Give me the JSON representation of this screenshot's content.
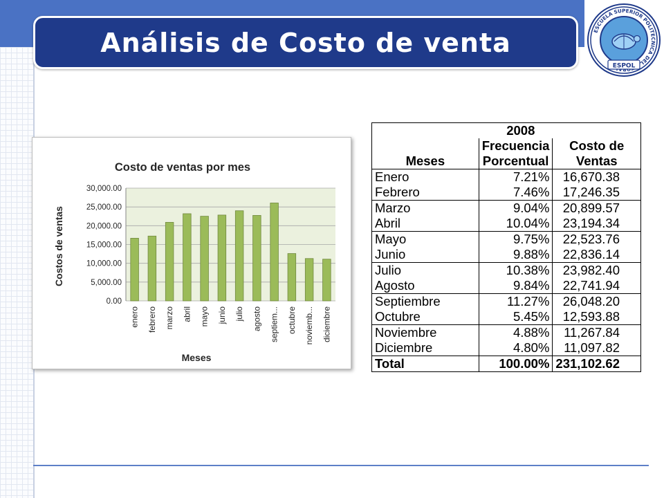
{
  "slide": {
    "title": "Análisis de Costo de venta"
  },
  "logo": {
    "ring_text": "ESCUELA SUPERIOR POLITECNICA DEL LITORAL",
    "banner_text": "ESPOL"
  },
  "chart_data": {
    "type": "bar",
    "title": "Costo de ventas por mes",
    "xlabel": "Meses",
    "ylabel": "Costos de ventas",
    "categories": [
      "enero",
      "febrero",
      "marzo",
      "abril",
      "mayo",
      "junio",
      "julio",
      "agosto",
      "septiem...",
      "octubre",
      "noviemb...",
      "diciembre"
    ],
    "values": [
      16670.38,
      17246.35,
      20899.57,
      23194.34,
      22523.76,
      22836.14,
      23982.4,
      22741.94,
      26048.2,
      12593.88,
      11267.84,
      11097.82
    ],
    "ylim": [
      0,
      30000
    ],
    "yticks": [
      "0.00",
      "5,000.00",
      "10,000.00",
      "15,000.00",
      "20,000.00",
      "25,000.00",
      "30,000.00"
    ],
    "grid": true,
    "bar_color": "#9bbb59",
    "plot_bg": "#ebf1de"
  },
  "table": {
    "year": "2008",
    "col_meses": "Meses",
    "col_freq_1": "Frecuencia",
    "col_freq_2": "Porcentual",
    "col_costo_1": "Costo de",
    "col_costo_2": "Ventas",
    "rows": [
      {
        "mes": "Enero",
        "freq": "7.21%",
        "costo": "16,670.38"
      },
      {
        "mes": "Febrero",
        "freq": "7.46%",
        "costo": "17,246.35"
      },
      {
        "mes": "Marzo",
        "freq": "9.04%",
        "costo": "20,899.57"
      },
      {
        "mes": "Abril",
        "freq": "10.04%",
        "costo": "23,194.34"
      },
      {
        "mes": "Mayo",
        "freq": "9.75%",
        "costo": "22,523.76"
      },
      {
        "mes": "Junio",
        "freq": "9.88%",
        "costo": "22,836.14"
      },
      {
        "mes": "Julio",
        "freq": "10.38%",
        "costo": "23,982.40"
      },
      {
        "mes": "Agosto",
        "freq": "9.84%",
        "costo": "22,741.94"
      },
      {
        "mes": "Septiembre",
        "freq": "11.27%",
        "costo": "26,048.20"
      },
      {
        "mes": "Octubre",
        "freq": "5.45%",
        "costo": "12,593.88"
      },
      {
        "mes": "Noviembre",
        "freq": "4.88%",
        "costo": "11,267.84"
      },
      {
        "mes": "Diciembre",
        "freq": "4.80%",
        "costo": "11,097.82"
      }
    ],
    "total": {
      "label": "Total",
      "freq": "100.00%",
      "costo": "231,102.62"
    }
  }
}
